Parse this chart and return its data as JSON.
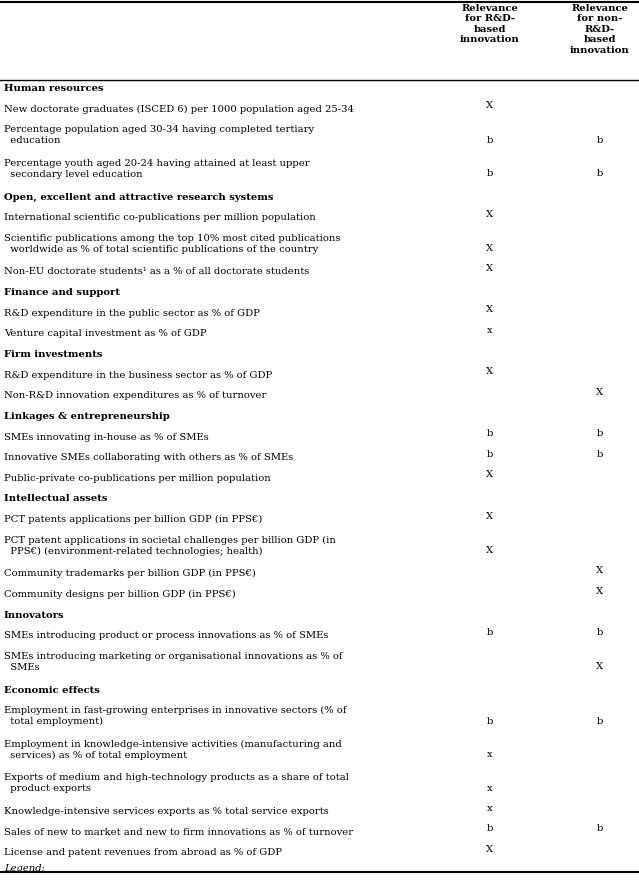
{
  "col1_header": "Relevance\nfor R&D-\nbased\ninnovation",
  "col2_header": "Relevance\nfor non-\nR&D-\nbased\ninnovation",
  "rows": [
    {
      "text": "Human resources",
      "bold": true,
      "col1": "",
      "col2": ""
    },
    {
      "text": "New doctorate graduates (ISCED 6) per 1000 population aged 25-34",
      "bold": false,
      "col1": "X",
      "col2": ""
    },
    {
      "text": "Percentage population aged 30-34 having completed tertiary\n  education",
      "bold": false,
      "col1": "b",
      "col2": "b"
    },
    {
      "text": "Percentage youth aged 20-24 having attained at least upper\n  secondary level education",
      "bold": false,
      "col1": "b",
      "col2": "b"
    },
    {
      "text": "Open, excellent and attractive research systems",
      "bold": true,
      "col1": "",
      "col2": ""
    },
    {
      "text": "International scientific co-publications per million population",
      "bold": false,
      "col1": "X",
      "col2": ""
    },
    {
      "text": "Scientific publications among the top 10% most cited publications\n  worldwide as % of total scientific publications of the country",
      "bold": false,
      "col1": "X",
      "col2": ""
    },
    {
      "text": "Non-EU doctorate students¹ as a % of all doctorate students",
      "bold": false,
      "col1": "X",
      "col2": ""
    },
    {
      "text": "Finance and support",
      "bold": true,
      "col1": "",
      "col2": ""
    },
    {
      "text": "R&D expenditure in the public sector as % of GDP",
      "bold": false,
      "col1": "X",
      "col2": ""
    },
    {
      "text": "Venture capital investment as % of GDP",
      "bold": false,
      "col1": "x",
      "col2": ""
    },
    {
      "text": "Firm investments",
      "bold": true,
      "col1": "",
      "col2": ""
    },
    {
      "text": "R&D expenditure in the business sector as % of GDP",
      "bold": false,
      "col1": "X",
      "col2": ""
    },
    {
      "text": "Non-R&D innovation expenditures as % of turnover",
      "bold": false,
      "col1": "",
      "col2": "X"
    },
    {
      "text": "Linkages & entrepreneurship",
      "bold": true,
      "col1": "",
      "col2": ""
    },
    {
      "text": "SMEs innovating in-house as % of SMEs",
      "bold": false,
      "col1": "b",
      "col2": "b"
    },
    {
      "text": "Innovative SMEs collaborating with others as % of SMEs",
      "bold": false,
      "col1": "b",
      "col2": "b"
    },
    {
      "text": "Public-private co-publications per million population",
      "bold": false,
      "col1": "X",
      "col2": ""
    },
    {
      "text": "Intellectual assets",
      "bold": true,
      "col1": "",
      "col2": ""
    },
    {
      "text": "PCT patents applications per billion GDP (in PPS€)",
      "bold": false,
      "col1": "X",
      "col2": ""
    },
    {
      "text": "PCT patent applications in societal challenges per billion GDP (in\n  PPS€) (environment-related technologies; health)",
      "bold": false,
      "col1": "X",
      "col2": ""
    },
    {
      "text": "Community trademarks per billion GDP (in PPS€)",
      "bold": false,
      "col1": "",
      "col2": "X"
    },
    {
      "text": "Community designs per billion GDP (in PPS€)",
      "bold": false,
      "col1": "",
      "col2": "X"
    },
    {
      "text": "Innovators",
      "bold": true,
      "col1": "",
      "col2": ""
    },
    {
      "text": "SMEs introducing product or process innovations as % of SMEs",
      "bold": false,
      "col1": "b",
      "col2": "b"
    },
    {
      "text": "SMEs introducing marketing or organisational innovations as % of\n  SMEs",
      "bold": false,
      "col1": "",
      "col2": "X"
    },
    {
      "text": "Economic effects",
      "bold": true,
      "col1": "",
      "col2": ""
    },
    {
      "text": "Employment in fast-growing enterprises in innovative sectors (% of\n  total employment)",
      "bold": false,
      "col1": "b",
      "col2": "b"
    },
    {
      "text": "Employment in knowledge-intensive activities (manufacturing and\n  services) as % of total employment",
      "bold": false,
      "col1": "x",
      "col2": ""
    },
    {
      "text": "Exports of medium and high-technology products as a share of total\n  product exports",
      "bold": false,
      "col1": "x",
      "col2": ""
    },
    {
      "text": "Knowledge-intensive services exports as % total service exports",
      "bold": false,
      "col1": "x",
      "col2": ""
    },
    {
      "text": "Sales of new to market and new to firm innovations as % of turnover",
      "bold": false,
      "col1": "b",
      "col2": "b"
    },
    {
      "text": "License and patent revenues from abroad as % of GDP",
      "bold": false,
      "col1": "X",
      "col2": ""
    }
  ],
  "footer": "Legend:",
  "bg_color": "#ffffff",
  "text_color": "#000000",
  "line_color": "#000000"
}
